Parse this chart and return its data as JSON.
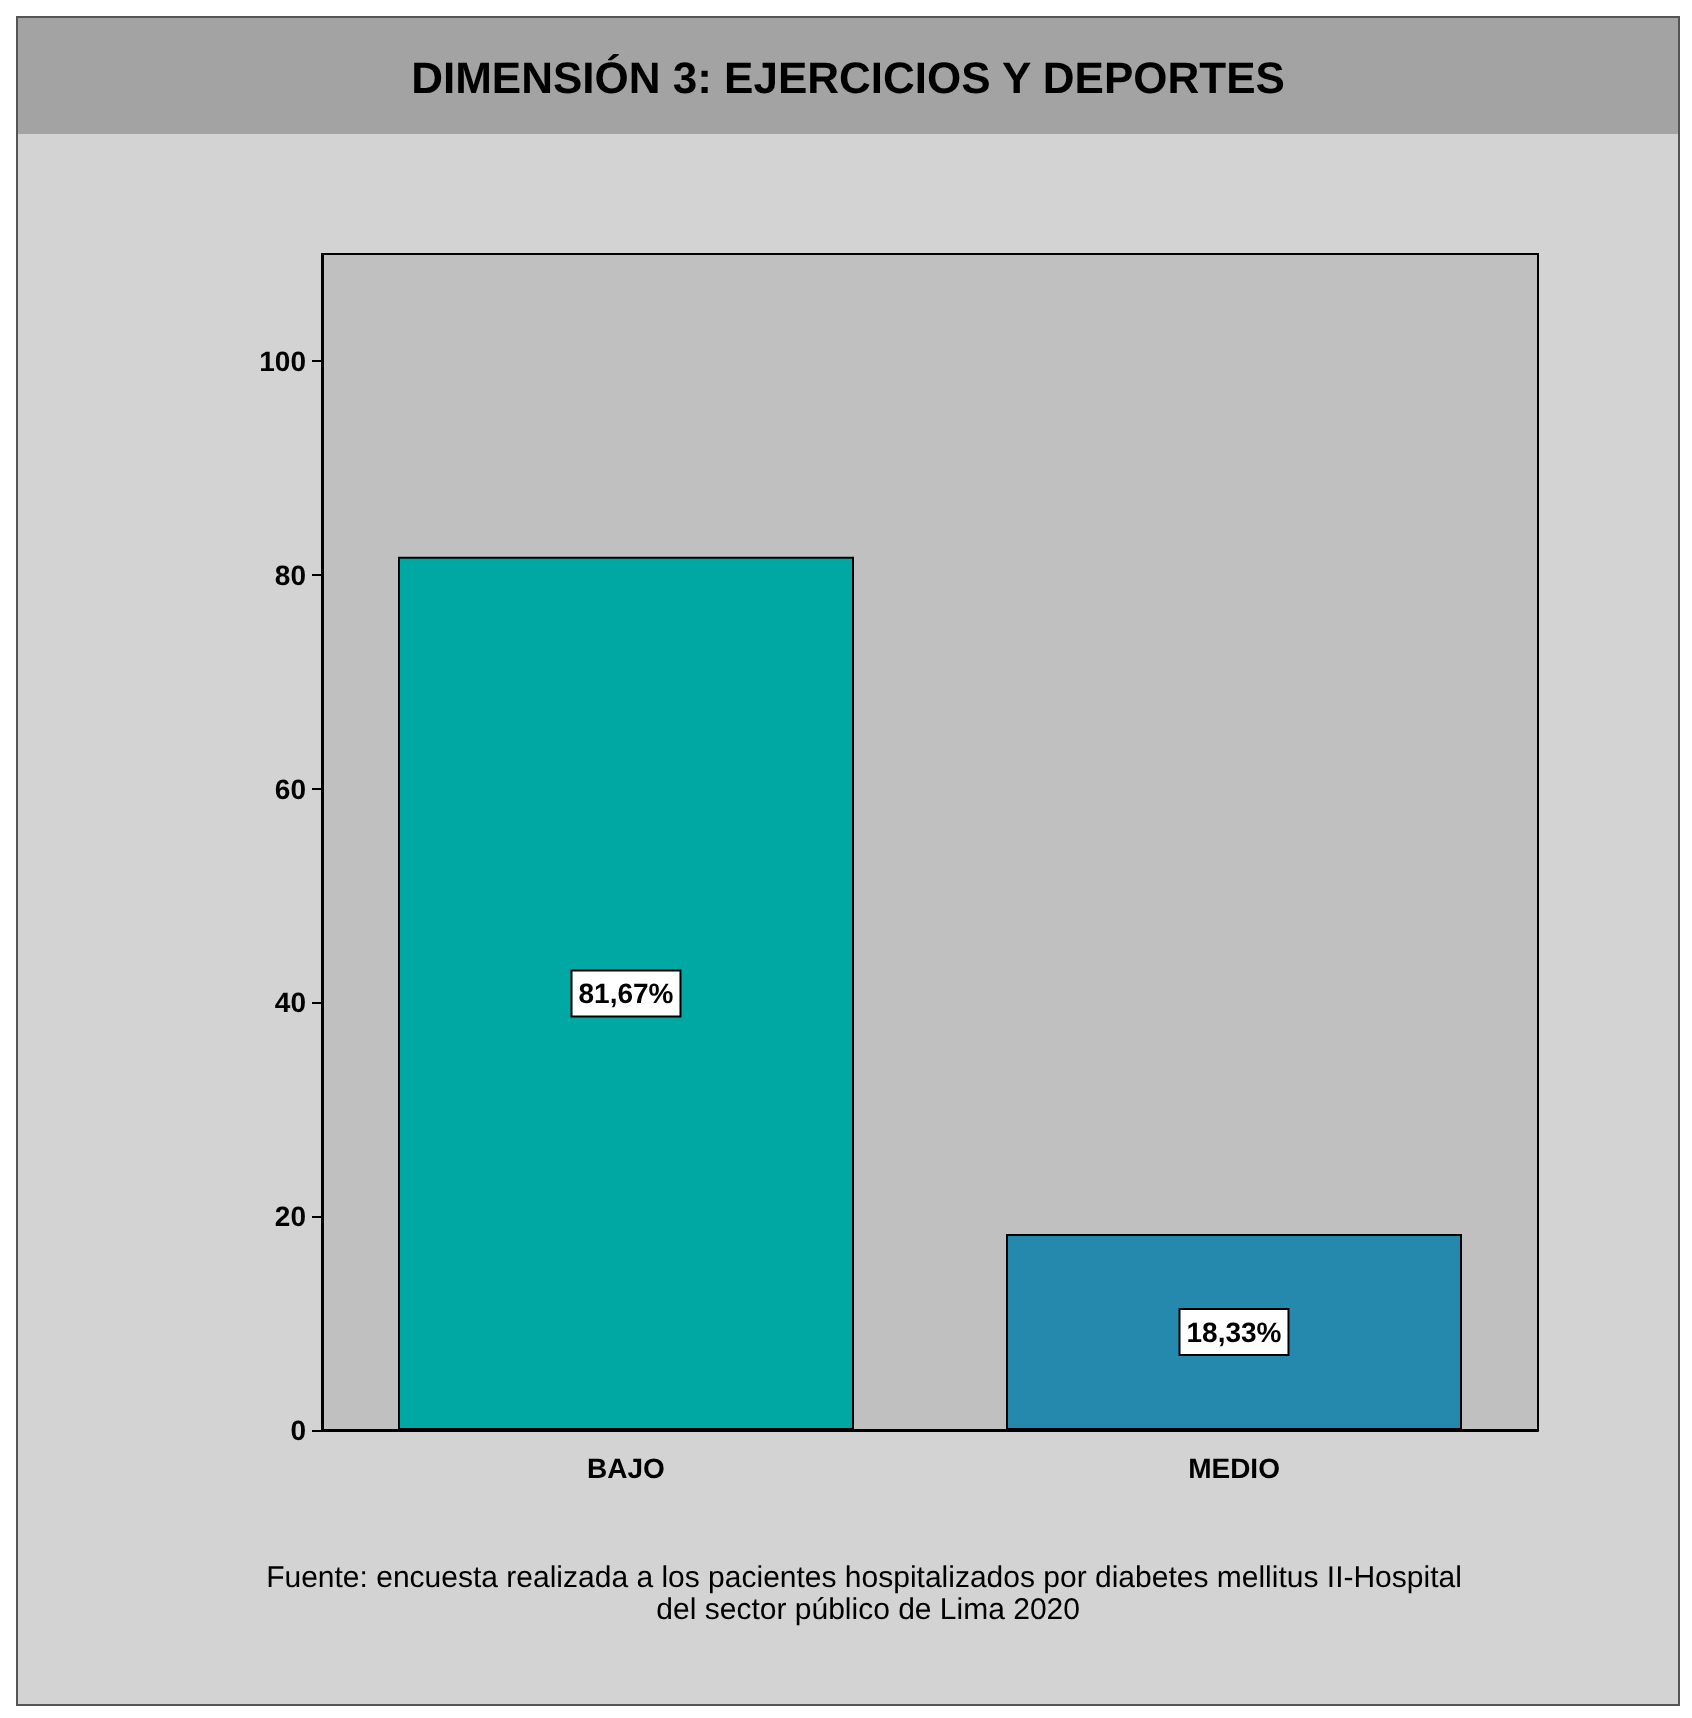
{
  "chart_data": {
    "type": "bar",
    "title": "DIMENSIÓN 3: EJERCICIOS Y DEPORTES",
    "categories": [
      "BAJO",
      "MEDIO"
    ],
    "values": [
      81.67,
      18.33
    ],
    "colors": [
      "#00a8a4",
      "#2589ad"
    ],
    "value_labels": [
      "81,67%",
      "18,33%"
    ],
    "ylim": [
      0,
      110
    ],
    "yticks": [
      0,
      20,
      40,
      60,
      80,
      100
    ],
    "grid": false,
    "annotations": [
      "Fuente: encuesta realizada a los pacientes hospitalizados por diabetes mellitus II-Hospital del sector público de Lima 2020"
    ]
  }
}
